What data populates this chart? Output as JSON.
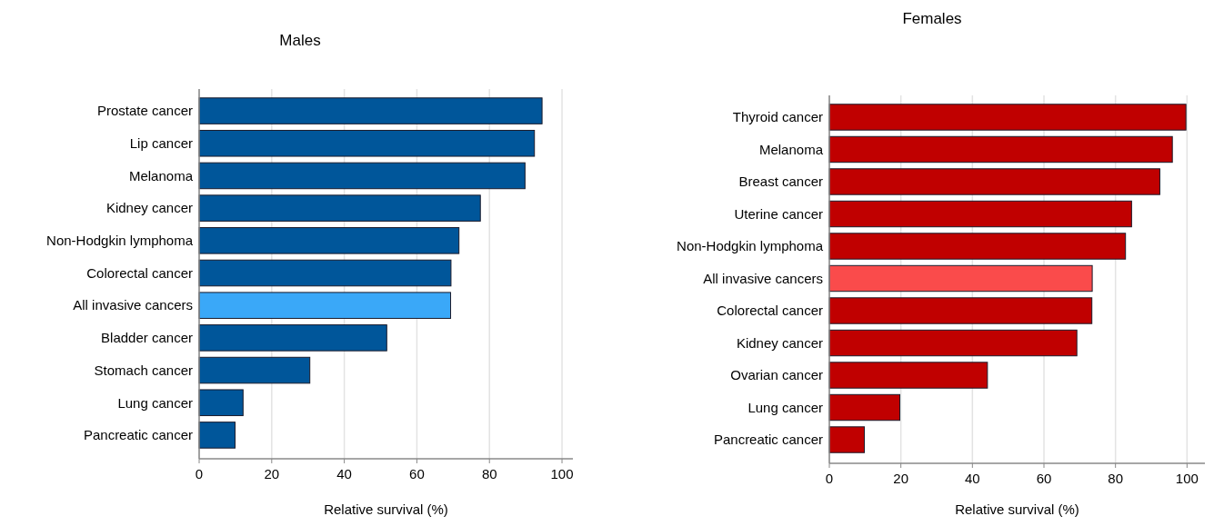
{
  "chart_data": [
    {
      "type": "bar",
      "orientation": "horizontal",
      "title": "Males",
      "xlabel": "Relative survival (%)",
      "categories": [
        "Prostate cancer",
        "Lip cancer",
        "Melanoma",
        "Kidney cancer",
        "Non-Hodgkin lymphoma",
        "Colorectal cancer",
        "All invasive cancers",
        "Bladder cancer",
        "Stomach cancer",
        "Lung cancer",
        "Pancreatic cancer"
      ],
      "values": [
        94.5,
        92.4,
        89.8,
        77.5,
        71.6,
        69.4,
        69.3,
        51.7,
        30.5,
        12.1,
        9.9
      ],
      "colors": [
        "#00569a",
        "#00569a",
        "#00569a",
        "#00569a",
        "#00569a",
        "#00569a",
        "#3aa8f8",
        "#00569a",
        "#00569a",
        "#00569a",
        "#00569a"
      ],
      "xlim": [
        0,
        103
      ],
      "xticks": [
        0,
        20,
        40,
        60,
        80,
        100
      ],
      "grid": "x"
    },
    {
      "type": "bar",
      "orientation": "horizontal",
      "title": "Females",
      "xlabel": "Relative survival (%)",
      "categories": [
        "Thyroid cancer",
        "Melanoma",
        "Breast cancer",
        "Uterine cancer",
        "Non-Hodgkin lymphoma",
        "All invasive cancers",
        "Colorectal cancer",
        "Kidney cancer",
        "Ovarian cancer",
        "Lung cancer",
        "Pancreatic cancer"
      ],
      "values": [
        99.7,
        95.9,
        92.4,
        84.5,
        82.8,
        73.5,
        73.4,
        69.2,
        44.2,
        19.7,
        9.8
      ],
      "colors": [
        "#c00000",
        "#c00000",
        "#c00000",
        "#c00000",
        "#c00000",
        "#fa4b4b",
        "#c00000",
        "#c00000",
        "#c00000",
        "#c00000",
        "#c00000"
      ],
      "xlim": [
        0,
        105
      ],
      "xticks": [
        0,
        20,
        40,
        60,
        80,
        100
      ],
      "grid": "x"
    }
  ]
}
